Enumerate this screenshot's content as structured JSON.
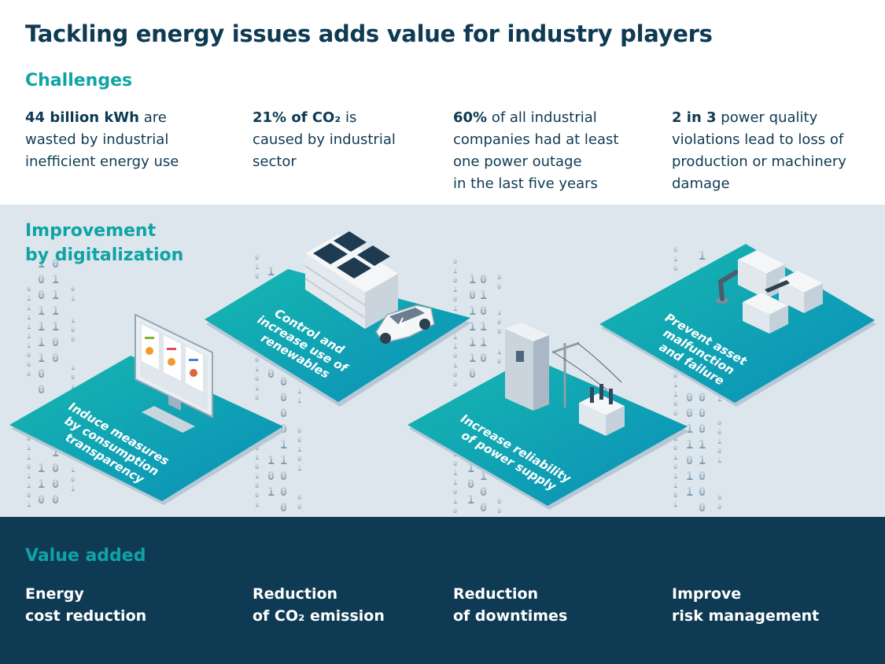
{
  "title": "Tackling energy issues adds value for industry players",
  "challenges": {
    "heading": "Challenges",
    "items": [
      {
        "bold": "44 billion kWh",
        "rest1": " are",
        "line2": "wasted by industrial",
        "line3": "inefficient energy use",
        "line4": ""
      },
      {
        "bold": "21% of CO₂",
        "rest1": " is",
        "line2": "caused by industrial",
        "line3": "sector",
        "line4": ""
      },
      {
        "bold": "60%",
        "rest1": " of all industrial",
        "line2": "companies had at least",
        "line3": "one power outage",
        "line4": "in the last five years"
      },
      {
        "bold": "2 in 3",
        "rest1": " power quality",
        "line2": "violations lead to loss of",
        "line3": "production or machinery",
        "line4": "damage"
      }
    ]
  },
  "improvement": {
    "heading_line1": "Improvement",
    "heading_line2": "by digitalization",
    "plates": [
      {
        "line1": "Induce measures",
        "line2": "by consumption",
        "line3": "transparency"
      },
      {
        "line1": "Control and",
        "line2": "increase use of",
        "line3": "renewables"
      },
      {
        "line1": "Increase reliability",
        "line2": "of power supply",
        "line3": ""
      },
      {
        "line1": "Prevent asset",
        "line2": "malfunction",
        "line3": "and failure"
      }
    ]
  },
  "value_added": {
    "heading": "Value added",
    "items": [
      {
        "line1": "Energy",
        "line2": "cost reduction"
      },
      {
        "line1": "Reduction",
        "line2": "of CO₂ emission"
      },
      {
        "line1": "Reduction",
        "line2": "of downtimes"
      },
      {
        "line1": "Improve",
        "line2": "risk management"
      }
    ]
  },
  "colors": {
    "navy": "#0e3a53",
    "teal": "#0fa3a6",
    "light_band": "#dde6ed"
  },
  "icons": [
    "monitor-icon",
    "solar-building-icon",
    "electric-car-icon",
    "switchgear-cabinet-icon",
    "power-pole-icon",
    "transformer-icon",
    "robot-arm-icon",
    "machine-icon"
  ]
}
